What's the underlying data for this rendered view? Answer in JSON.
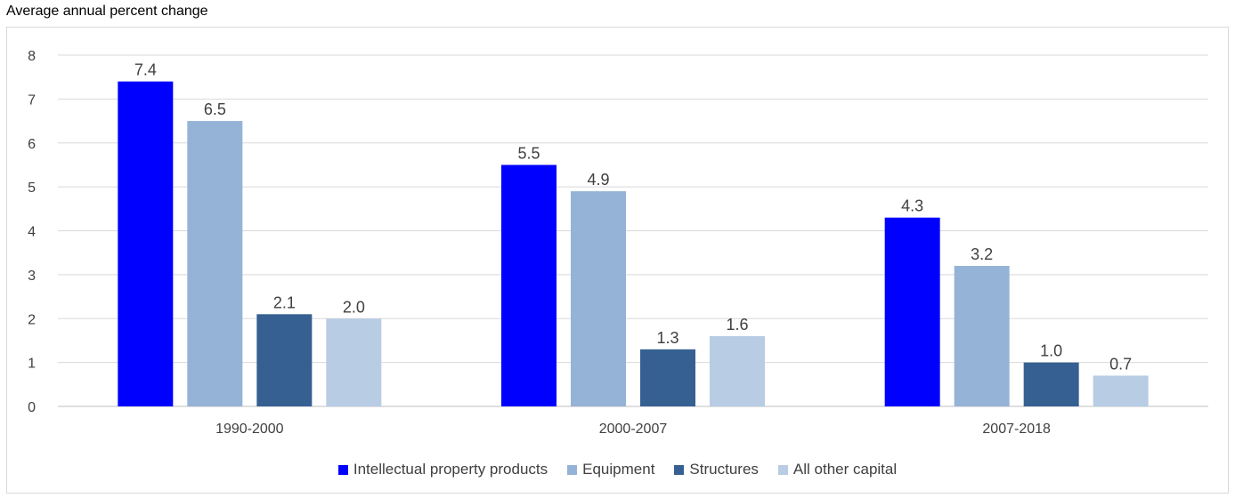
{
  "chart_data": {
    "type": "bar",
    "ylabel": "Average annual percent change",
    "categories": [
      "1990-2000",
      "2000-2007",
      "2007-2018"
    ],
    "series": [
      {
        "name": "Intellectual property products",
        "color": "#0000ff",
        "values": [
          7.4,
          5.5,
          4.3
        ]
      },
      {
        "name": "Equipment",
        "color": "#95b3d7",
        "values": [
          6.5,
          4.9,
          3.2
        ]
      },
      {
        "name": "Structures",
        "color": "#366092",
        "values": [
          2.1,
          1.3,
          1.0
        ]
      },
      {
        "name": "All other capital",
        "color": "#b8cce4",
        "values": [
          2.0,
          1.6,
          0.7
        ]
      }
    ],
    "data_labels": [
      [
        "7.4",
        "5.5",
        "4.3"
      ],
      [
        "6.5",
        "4.9",
        "3.2"
      ],
      [
        "2.1",
        "1.3",
        "1.0"
      ],
      [
        "2.0",
        "1.6",
        "0.7"
      ]
    ],
    "ylim": [
      0,
      8
    ],
    "yticks": [
      "0",
      "1",
      "2",
      "3",
      "4",
      "5",
      "6",
      "7",
      "8"
    ],
    "grid": true,
    "legend_position": "bottom"
  }
}
